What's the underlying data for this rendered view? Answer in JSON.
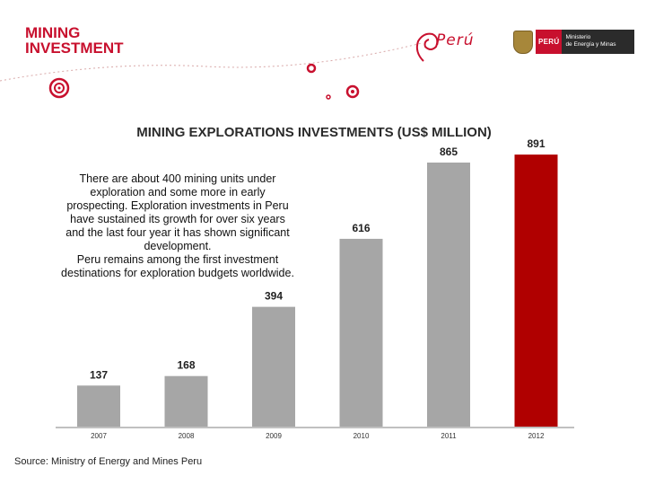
{
  "header": {
    "title_lines": [
      "MINING",
      "INVESTMENT"
    ],
    "brand_text": "Perú",
    "gov_country": "PERÚ",
    "gov_ministry_lines": [
      "Ministerio",
      "de Energía y Minas"
    ]
  },
  "description_lines": [
    "There are about 400 mining units under",
    "exploration and some more in early",
    "prospecting. Exploration investments in Peru",
    "have sustained its growth for over six years",
    "and the last four year it has shown significant",
    "development.",
    "Peru remains among the first investment",
    "destinations for exploration budgets worldwide."
  ],
  "source": "Source: Ministry of Energy and Mines Peru",
  "colors": {
    "brand_red": "#c8102e",
    "bar_gray": "#a6a6a6",
    "bar_highlight": "#b00000"
  },
  "chart_data": {
    "type": "bar",
    "title": "MINING EXPLORATIONS INVESTMENTS (US$ MILLION)",
    "categories": [
      "2007",
      "2008",
      "2009",
      "2010",
      "2011",
      "2012"
    ],
    "values": [
      137,
      168,
      394,
      616,
      865,
      891
    ],
    "value_labels": [
      "137",
      "168",
      "394",
      "616",
      "865",
      "891"
    ],
    "highlight_category": "2012",
    "xlabel": "",
    "ylabel": "",
    "ylim": [
      0,
      950
    ],
    "grid": false,
    "legend": "none"
  }
}
